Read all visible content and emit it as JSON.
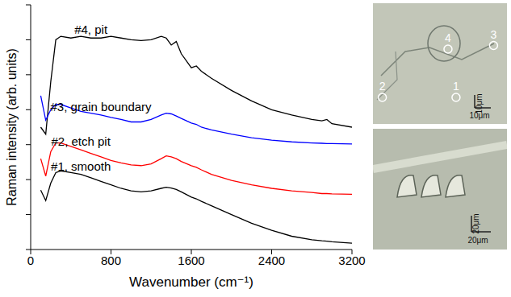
{
  "chart_data": {
    "type": "line",
    "x_label": "Wavenumber (cm⁻¹)",
    "y_label": "Raman intensity (arb. units)",
    "x": [
      100,
      150,
      200,
      250,
      300,
      400,
      500,
      600,
      700,
      800,
      900,
      1000,
      1100,
      1200,
      1300,
      1350,
      1400,
      1450,
      1500,
      1600,
      1650,
      1700,
      1800,
      2000,
      2200,
      2400,
      2600,
      2800,
      2900,
      2950,
      3000,
      3200
    ],
    "xlim": [
      0,
      3200
    ],
    "xticks": [
      0,
      800,
      1600,
      2400,
      3200
    ],
    "ylim": [
      0,
      7
    ],
    "yticks": [
      0,
      1,
      2,
      3,
      4,
      5,
      6,
      7
    ],
    "tick_labels": "x",
    "grid": false,
    "series": [
      {
        "name": "#4, pit",
        "color": "#000000",
        "values": [
          3.5,
          3.3,
          4.8,
          6.0,
          6.1,
          6.05,
          6.1,
          6.05,
          6.05,
          6.1,
          6.05,
          6.0,
          5.98,
          6.0,
          6.1,
          6.05,
          5.85,
          5.95,
          5.6,
          5.2,
          5.25,
          5.1,
          4.9,
          4.55,
          4.25,
          4.0,
          3.85,
          3.72,
          3.68,
          3.72,
          3.6,
          3.5
        ]
      },
      {
        "name": "#3, grain boundary",
        "color": "#0000ff",
        "values": [
          4.4,
          3.7,
          4.0,
          4.15,
          4.15,
          4.05,
          3.95,
          3.9,
          3.85,
          3.78,
          3.72,
          3.65,
          3.65,
          3.72,
          3.85,
          3.9,
          3.88,
          3.82,
          3.75,
          3.62,
          3.58,
          3.5,
          3.42,
          3.3,
          3.2,
          3.13,
          3.08,
          3.05,
          3.04,
          3.03,
          3.03,
          3.02
        ]
      },
      {
        "name": "#2, etch pit",
        "color": "#ff0000",
        "values": [
          2.6,
          2.1,
          2.8,
          3.05,
          3.05,
          2.95,
          2.85,
          2.75,
          2.65,
          2.55,
          2.48,
          2.42,
          2.4,
          2.45,
          2.6,
          2.68,
          2.65,
          2.6,
          2.52,
          2.4,
          2.35,
          2.28,
          2.15,
          1.98,
          1.85,
          1.75,
          1.68,
          1.63,
          1.6,
          1.6,
          1.59,
          1.58
        ]
      },
      {
        "name": "#1, smooth",
        "color": "#000000",
        "values": [
          1.7,
          1.4,
          1.9,
          2.2,
          2.25,
          2.2,
          2.15,
          2.05,
          1.95,
          1.85,
          1.75,
          1.68,
          1.65,
          1.68,
          1.75,
          1.78,
          1.76,
          1.72,
          1.65,
          1.5,
          1.45,
          1.38,
          1.25,
          1.0,
          0.75,
          0.55,
          0.38,
          0.28,
          0.25,
          0.24,
          0.22,
          0.18
        ]
      }
    ],
    "images": [
      {
        "markers": [
          "4",
          "3",
          "2",
          "1"
        ],
        "scale_bars": [
          "10μm",
          "10μm"
        ]
      },
      {
        "scale_bars": [
          "20μm",
          "20μm"
        ]
      }
    ]
  }
}
